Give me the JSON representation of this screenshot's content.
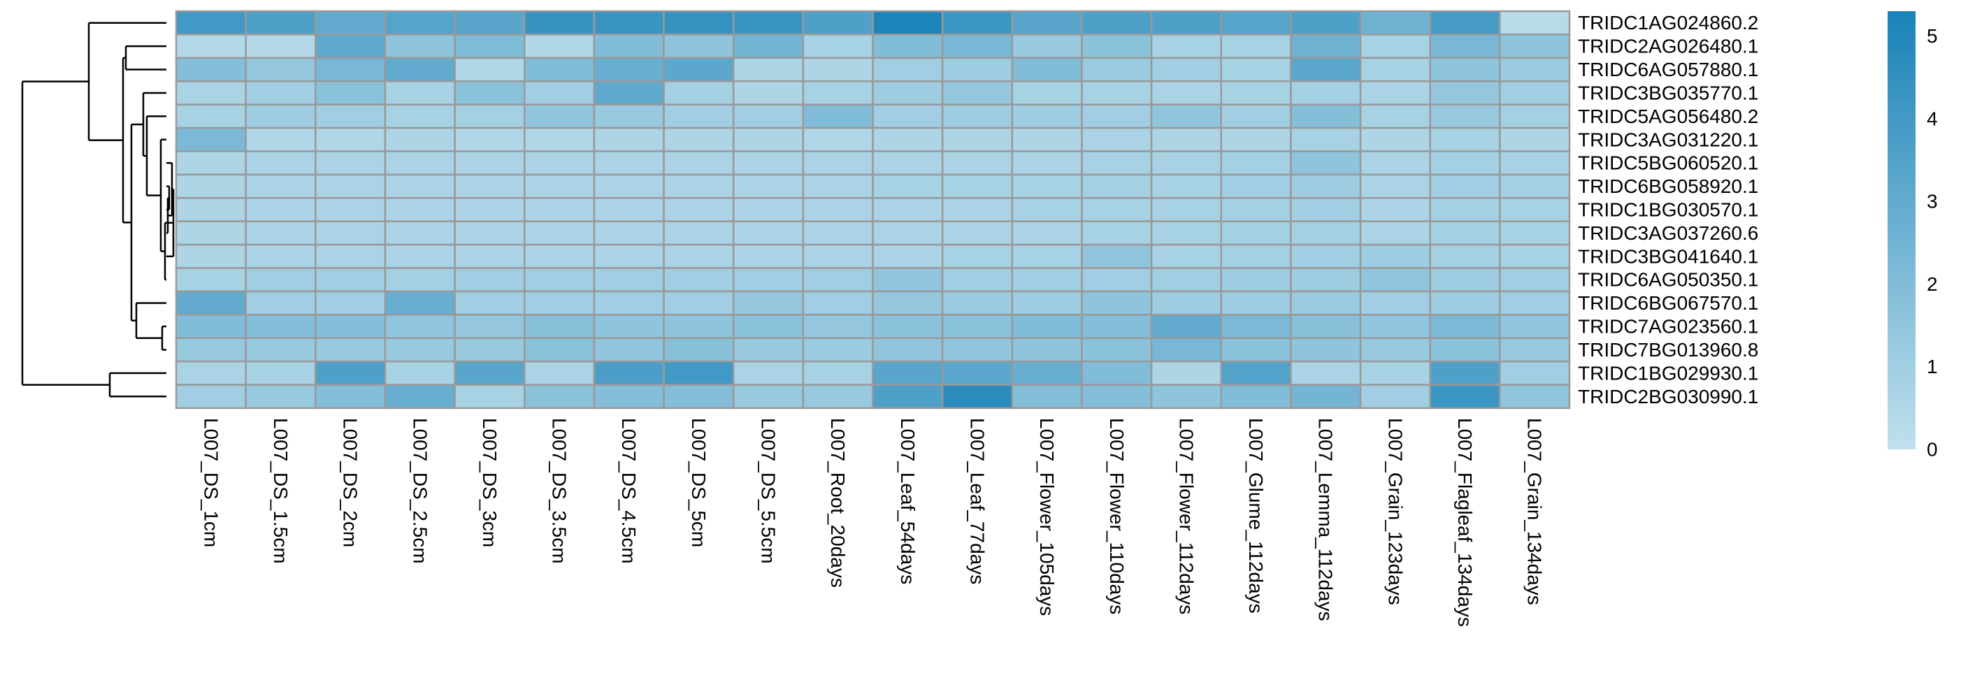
{
  "chart_data": {
    "type": "heatmap",
    "title": "",
    "xlabel": "",
    "ylabel": "",
    "columns": [
      "L007_DS_1cm",
      "L007_DS_1.5cm",
      "L007_DS_2cm",
      "L007_DS_2.5cm",
      "L007_DS_3cm",
      "L007_DS_3.5cm",
      "L007_DS_4.5cm",
      "L007_DS_5cm",
      "L007_DS_5.5cm",
      "L007_Root_20days",
      "L007_Leaf_54days",
      "L007_Leaf_77days",
      "L007_Flower_105days",
      "L007_Flower_110days",
      "L007_Flower_112days",
      "L007_Glume_112days",
      "L007_Lemma_112days",
      "L007_Grain_123days",
      "L007_Flagleaf_134days",
      "L007_Grain_134days"
    ],
    "rows": [
      "TRIDC1AG024860.2",
      "TRIDC2AG026480.1",
      "TRIDC6AG057880.1",
      "TRIDC3BG035770.1",
      "TRIDC5AG056480.2",
      "TRIDC3AG031220.1",
      "TRIDC5BG060520.1",
      "TRIDC6BG058920.1",
      "TRIDC1BG030570.1",
      "TRIDC3AG037260.6",
      "TRIDC3BG041640.1",
      "TRIDC6AG050350.1",
      "TRIDC6BG067570.1",
      "TRIDC7AG023560.1",
      "TRIDC7BG013960.8",
      "TRIDC1BG029930.1",
      "TRIDC2BG030990.1"
    ],
    "values": [
      [
        4.0,
        3.6,
        3.0,
        3.4,
        3.3,
        4.4,
        4.3,
        4.4,
        4.3,
        3.6,
        5.2,
        4.2,
        3.3,
        3.6,
        3.6,
        3.4,
        3.6,
        2.6,
        3.9,
        0.3
      ],
      [
        0.4,
        0.4,
        3.1,
        1.6,
        2.1,
        0.5,
        2.0,
        1.6,
        2.5,
        0.8,
        2.0,
        2.3,
        1.3,
        1.7,
        0.8,
        0.8,
        2.6,
        0.8,
        2.3,
        1.6
      ],
      [
        1.9,
        1.4,
        2.3,
        3.0,
        0.5,
        2.0,
        2.8,
        3.2,
        0.6,
        0.6,
        1.0,
        1.1,
        2.0,
        1.2,
        1.0,
        0.8,
        3.2,
        0.8,
        1.6,
        1.2
      ],
      [
        0.7,
        1.0,
        1.7,
        0.8,
        1.7,
        1.0,
        3.1,
        0.9,
        0.6,
        0.8,
        1.1,
        1.4,
        0.8,
        0.8,
        0.7,
        0.8,
        0.9,
        0.7,
        1.4,
        1.0
      ],
      [
        0.8,
        1.1,
        1.0,
        0.8,
        0.9,
        1.5,
        1.3,
        1.0,
        1.0,
        2.0,
        1.0,
        1.1,
        1.1,
        1.0,
        1.5,
        1.0,
        1.9,
        0.8,
        1.3,
        0.9
      ],
      [
        2.2,
        0.5,
        0.5,
        0.6,
        0.5,
        0.5,
        0.6,
        0.6,
        0.6,
        0.5,
        0.6,
        0.6,
        0.6,
        0.7,
        0.6,
        0.6,
        0.8,
        0.6,
        0.8,
        0.6
      ],
      [
        0.6,
        0.7,
        0.7,
        0.7,
        0.7,
        0.7,
        0.7,
        0.7,
        0.7,
        0.7,
        0.7,
        0.7,
        0.7,
        0.8,
        0.8,
        0.9,
        1.6,
        0.7,
        0.9,
        0.8
      ],
      [
        0.6,
        0.7,
        0.7,
        0.7,
        0.7,
        0.7,
        0.7,
        0.7,
        0.7,
        0.7,
        0.8,
        0.8,
        0.8,
        0.9,
        0.8,
        1.0,
        1.1,
        0.7,
        1.0,
        0.9
      ],
      [
        0.6,
        0.7,
        0.7,
        0.7,
        0.7,
        0.7,
        0.7,
        0.7,
        0.7,
        0.7,
        0.7,
        0.7,
        0.8,
        0.8,
        0.8,
        0.9,
        1.0,
        0.7,
        0.9,
        0.8
      ],
      [
        0.6,
        0.7,
        0.7,
        0.7,
        0.7,
        0.7,
        0.7,
        0.7,
        0.7,
        0.7,
        0.7,
        0.7,
        0.7,
        0.8,
        0.8,
        0.9,
        0.9,
        0.7,
        0.9,
        0.8
      ],
      [
        0.6,
        0.7,
        0.7,
        0.7,
        0.7,
        0.7,
        0.7,
        0.7,
        0.7,
        0.7,
        0.7,
        0.8,
        0.8,
        1.5,
        0.8,
        0.9,
        1.0,
        1.1,
        0.9,
        0.8
      ],
      [
        0.8,
        1.0,
        1.0,
        0.9,
        1.0,
        1.0,
        1.0,
        1.0,
        1.0,
        1.0,
        1.5,
        1.0,
        1.0,
        1.0,
        1.0,
        1.1,
        1.1,
        1.5,
        1.1,
        1.0
      ],
      [
        3.0,
        1.0,
        1.0,
        2.8,
        1.0,
        1.0,
        1.0,
        1.0,
        1.4,
        1.0,
        1.4,
        1.2,
        1.1,
        1.6,
        1.1,
        1.1,
        1.2,
        1.0,
        1.1,
        1.0
      ],
      [
        2.0,
        1.9,
        1.9,
        1.5,
        1.4,
        1.8,
        1.6,
        1.6,
        1.7,
        1.4,
        1.7,
        1.7,
        2.0,
        1.9,
        3.0,
        2.2,
        1.8,
        1.5,
        2.2,
        1.5
      ],
      [
        1.3,
        1.3,
        1.3,
        1.3,
        1.3,
        1.7,
        1.5,
        1.8,
        1.3,
        1.2,
        1.5,
        1.5,
        1.6,
        1.7,
        2.3,
        1.7,
        1.6,
        1.3,
        1.7,
        1.3
      ],
      [
        0.7,
        0.8,
        3.6,
        0.8,
        3.3,
        0.7,
        3.7,
        4.0,
        0.7,
        0.8,
        3.3,
        3.2,
        2.8,
        2.0,
        0.6,
        3.5,
        0.7,
        0.8,
        3.6,
        1.0
      ],
      [
        1.0,
        1.3,
        1.9,
        2.8,
        0.8,
        1.7,
        1.9,
        1.9,
        1.3,
        1.3,
        3.6,
        4.8,
        1.9,
        1.9,
        1.6,
        2.0,
        2.4,
        1.0,
        4.2,
        1.5
      ]
    ],
    "colorscale": {
      "min": 0,
      "max": 5.3,
      "low_color": "#c0e0ec",
      "high_color": "#1a82b8",
      "ticks": [
        0,
        1,
        2,
        3,
        4,
        5
      ]
    },
    "cell_border_color": "#999999",
    "dendrogram": "rows",
    "legend_position": "right"
  }
}
